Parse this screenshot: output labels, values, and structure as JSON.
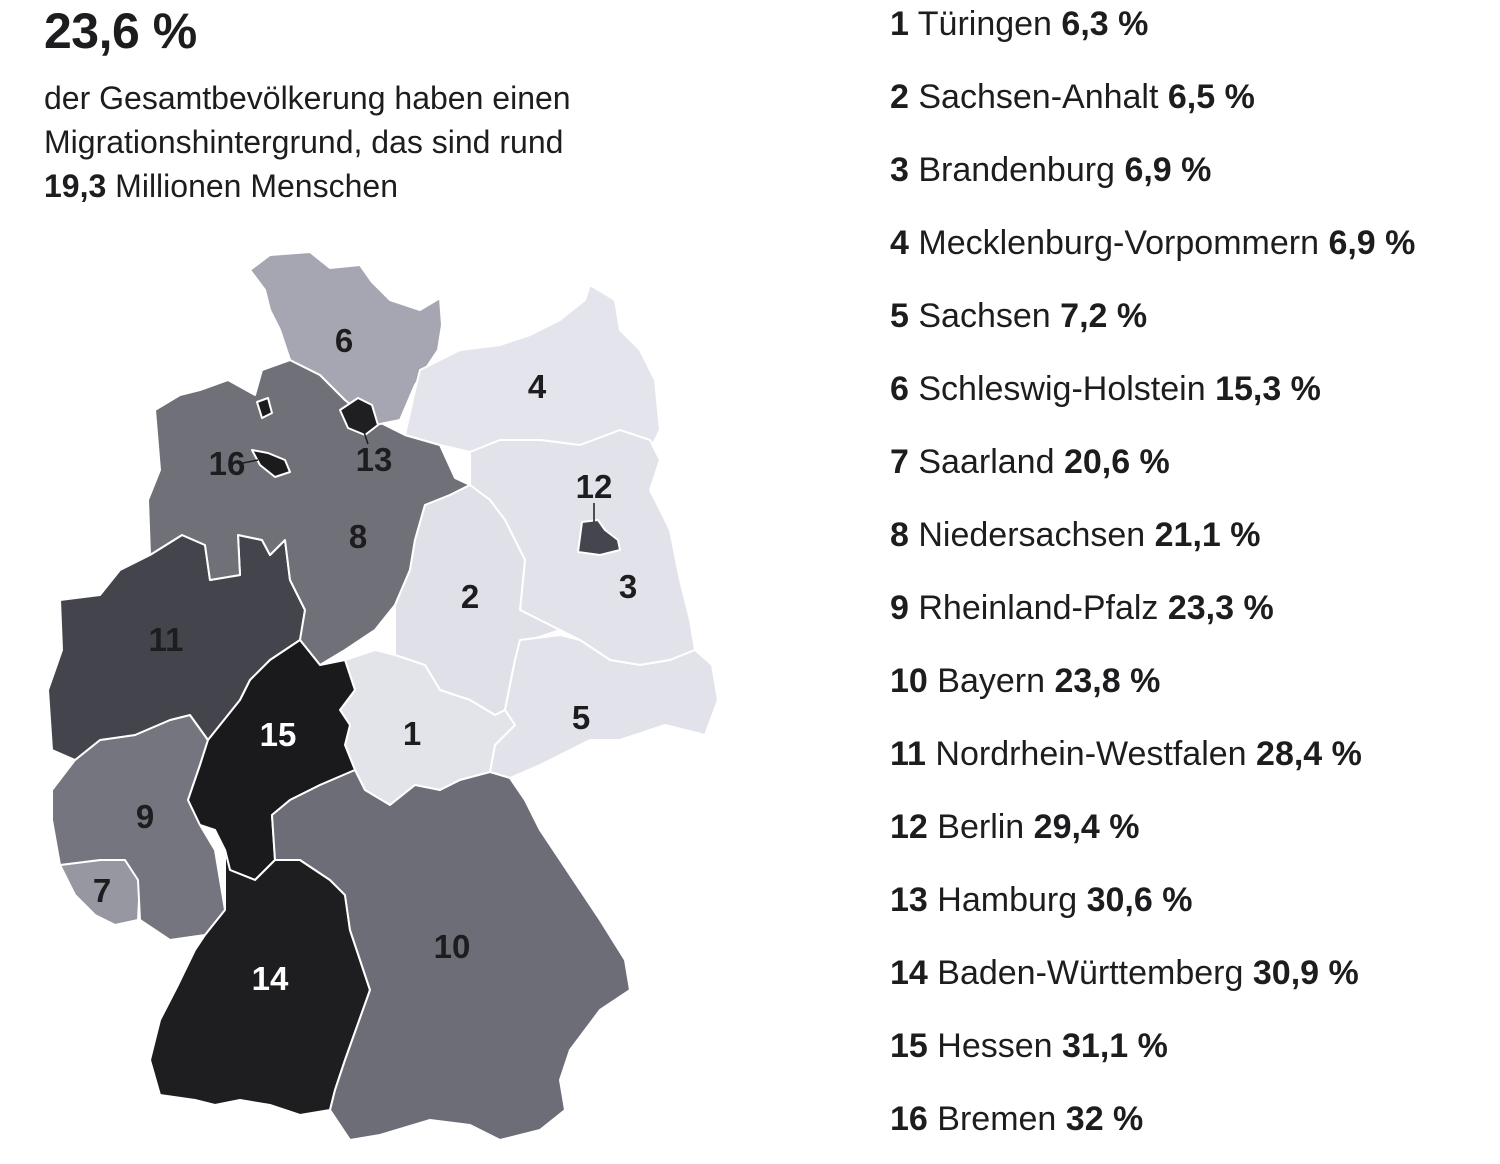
{
  "headline": "23,6 %",
  "subtitle": {
    "text": "der Gesamtbevölkerung haben einen Migrationshintergrund, das sind rund",
    "amount": "19,3",
    "amount_suffix": "Millionen Menschen"
  },
  "regions": [
    {
      "num": "1",
      "name": "Türingen",
      "value": "6,3 %",
      "pct": 6.3,
      "color": "#e3e3ea"
    },
    {
      "num": "2",
      "name": "Sachsen-Anhalt",
      "value": "6,5 %",
      "pct": 6.5,
      "color": "#e0e0e8"
    },
    {
      "num": "3",
      "name": "Brandenburg",
      "value": "6,9 %",
      "pct": 6.9,
      "color": "#e2e2ea"
    },
    {
      "num": "4",
      "name": "Mecklenburg-Vorpommern",
      "value": "6,9 %",
      "pct": 6.9,
      "color": "#e4e4ec"
    },
    {
      "num": "5",
      "name": "Sachsen",
      "value": "7,2 %",
      "pct": 7.2,
      "color": "#e2e2ea"
    },
    {
      "num": "6",
      "name": "Schleswig-Holstein",
      "value": "15,3 %",
      "pct": 15.3,
      "color": "#a6a6b2"
    },
    {
      "num": "7",
      "name": "Saarland",
      "value": "20,6 %",
      "pct": 20.6,
      "color": "#9797a2"
    },
    {
      "num": "8",
      "name": "Niedersachsen",
      "value": "21,1 %",
      "pct": 21.1,
      "color": "#707079"
    },
    {
      "num": "9",
      "name": "Rheinland-Pfalz",
      "value": "23,3 %",
      "pct": 23.3,
      "color": "#75757f"
    },
    {
      "num": "10",
      "name": "Bayern",
      "value": "23,8 %",
      "pct": 23.8,
      "color": "#6d6d78"
    },
    {
      "num": "11",
      "name": "Nordrhein-Westfalen",
      "value": "28,4 %",
      "pct": 28.4,
      "color": "#44444d"
    },
    {
      "num": "12",
      "name": "Berlin",
      "value": "29,4 %",
      "pct": 29.4,
      "color": "#45454f"
    },
    {
      "num": "13",
      "name": "Hamburg",
      "value": "30,6 %",
      "pct": 30.6,
      "color": "#1f1f22"
    },
    {
      "num": "14",
      "name": "Baden-Württemberg",
      "value": "30,9 %",
      "pct": 30.9,
      "color": "#1e1e20"
    },
    {
      "num": "15",
      "name": "Hessen",
      "value": "31,1 %",
      "pct": 31.1,
      "color": "#1a1a1c"
    },
    {
      "num": "16",
      "name": "Bremen",
      "value": "32 %",
      "pct": 32,
      "color": "#1b1b1d"
    }
  ]
}
